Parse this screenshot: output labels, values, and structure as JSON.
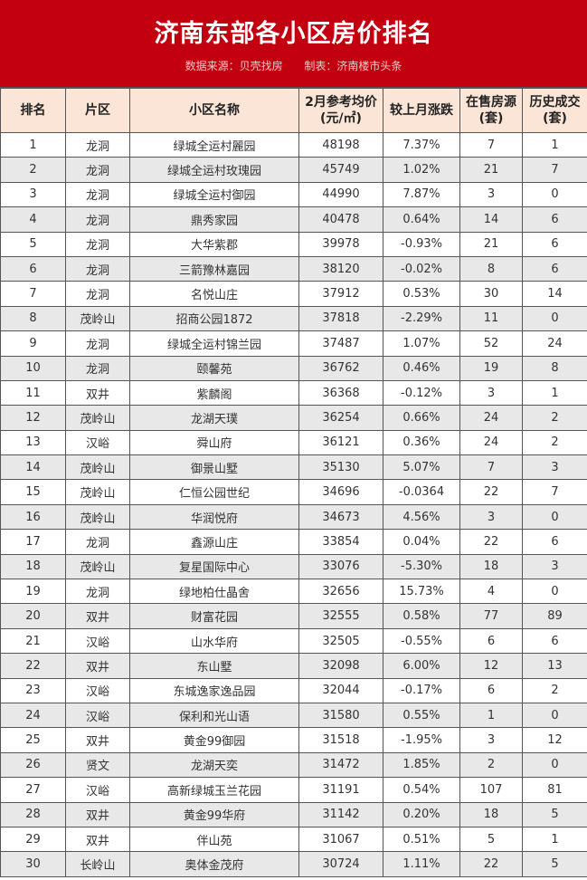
{
  "title": "济南东部各小区房价排名",
  "source": "数据来源：贝壳找房",
  "maker": "制表：济南楼市头条",
  "colors": {
    "banner": "#c3000f",
    "header_bg": "#fbe5d6",
    "even_row": "#e8e8e8"
  },
  "headers": [
    "排名",
    "片区",
    "小区名称",
    "2月参考均价\n(元/㎡)",
    "较上月涨跌",
    "在售房源\n(套)",
    "历史成交\n(套)"
  ],
  "rows": [
    [
      "1",
      "龙洞",
      "绿城全运村麗园",
      "48198",
      "7.37%",
      "7",
      "1"
    ],
    [
      "2",
      "龙洞",
      "绿城全运村玫瑰园",
      "45749",
      "1.02%",
      "21",
      "7"
    ],
    [
      "3",
      "龙洞",
      "绿城全运村御园",
      "44990",
      "7.87%",
      "3",
      "0"
    ],
    [
      "4",
      "龙洞",
      "鼎秀家园",
      "40478",
      "0.64%",
      "14",
      "6"
    ],
    [
      "5",
      "龙洞",
      "大华紫郡",
      "39978",
      "-0.93%",
      "21",
      "6"
    ],
    [
      "6",
      "龙洞",
      "三箭豫林嘉园",
      "38120",
      "-0.02%",
      "8",
      "6"
    ],
    [
      "7",
      "龙洞",
      "名悦山庄",
      "37912",
      "0.53%",
      "30",
      "14"
    ],
    [
      "8",
      "茂岭山",
      "招商公园1872",
      "37818",
      "-2.29%",
      "11",
      "0"
    ],
    [
      "9",
      "龙洞",
      "绿城全运村锦兰园",
      "37487",
      "1.07%",
      "52",
      "24"
    ],
    [
      "10",
      "龙洞",
      "颐馨苑",
      "36762",
      "0.46%",
      "19",
      "8"
    ],
    [
      "11",
      "双井",
      "紫麟阁",
      "36368",
      "-0.12%",
      "3",
      "1"
    ],
    [
      "12",
      "茂岭山",
      "龙湖天璞",
      "36254",
      "0.66%",
      "24",
      "2"
    ],
    [
      "13",
      "汉峪",
      "舜山府",
      "36121",
      "0.36%",
      "24",
      "2"
    ],
    [
      "14",
      "茂岭山",
      "御景山墅",
      "35130",
      "5.07%",
      "7",
      "3"
    ],
    [
      "15",
      "茂岭山",
      "仁恒公园世纪",
      "34696",
      "-0.0364",
      "22",
      "7"
    ],
    [
      "16",
      "茂岭山",
      "华润悦府",
      "34673",
      "4.56%",
      "3",
      "0"
    ],
    [
      "17",
      "龙洞",
      "鑫源山庄",
      "33854",
      "0.04%",
      "22",
      "6"
    ],
    [
      "18",
      "茂岭山",
      "复星国际中心",
      "33076",
      "-5.30%",
      "18",
      "3"
    ],
    [
      "19",
      "龙洞",
      "绿地柏仕晶舍",
      "32656",
      "15.73%",
      "4",
      "0"
    ],
    [
      "20",
      "双井",
      "财富花园",
      "32555",
      "0.58%",
      "77",
      "89"
    ],
    [
      "21",
      "汉峪",
      "山水华府",
      "32505",
      "-0.55%",
      "6",
      "6"
    ],
    [
      "22",
      "双井",
      "东山墅",
      "32098",
      "6.00%",
      "12",
      "13"
    ],
    [
      "23",
      "汉峪",
      "东城逸家逸品园",
      "32044",
      "-0.17%",
      "6",
      "2"
    ],
    [
      "24",
      "汉峪",
      "保利和光山语",
      "31580",
      "0.55%",
      "1",
      "0"
    ],
    [
      "25",
      "双井",
      "黄金99御园",
      "31518",
      "-1.95%",
      "3",
      "12"
    ],
    [
      "26",
      "贤文",
      "龙湖天奕",
      "31472",
      "1.85%",
      "2",
      "0"
    ],
    [
      "27",
      "汉峪",
      "高新绿城玉兰花园",
      "31191",
      "0.54%",
      "107",
      "81"
    ],
    [
      "28",
      "双井",
      "黄金99华府",
      "31142",
      "0.20%",
      "18",
      "5"
    ],
    [
      "29",
      "双井",
      "伴山苑",
      "31067",
      "0.51%",
      "5",
      "1"
    ],
    [
      "30",
      "长岭山",
      "奥体金茂府",
      "30724",
      "1.11%",
      "22",
      "5"
    ]
  ]
}
